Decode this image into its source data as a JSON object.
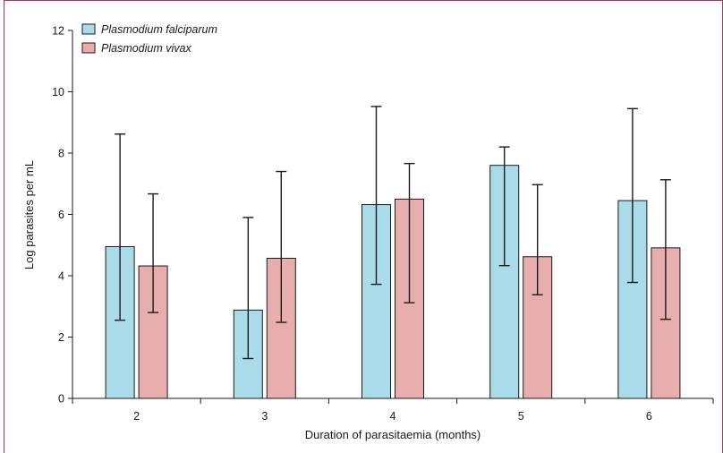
{
  "chart_data": {
    "type": "bar",
    "xlabel": "Duration of parasitaemia (months)",
    "ylabel": "Log parasites per mL",
    "ylim": [
      0,
      12
    ],
    "yticks": [
      0,
      2,
      4,
      6,
      8,
      10,
      12
    ],
    "categories": [
      "2",
      "3",
      "4",
      "5",
      "6"
    ],
    "grid": false,
    "legend_position": "top-left",
    "series": [
      {
        "name": "Plasmodium falciparum",
        "color": "#aadbe8",
        "values": [
          4.95,
          2.88,
          6.32,
          7.6,
          6.45
        ],
        "error_low": [
          2.55,
          1.3,
          3.72,
          4.33,
          3.78
        ],
        "error_high": [
          8.62,
          5.9,
          9.52,
          8.2,
          9.45
        ]
      },
      {
        "name": "Plasmodium vivax",
        "color": "#e8aeae",
        "values": [
          4.32,
          4.57,
          6.5,
          4.62,
          4.91
        ],
        "error_low": [
          2.8,
          2.48,
          3.12,
          3.38,
          2.58
        ],
        "error_high": [
          6.67,
          7.4,
          7.66,
          6.97,
          7.13
        ]
      }
    ]
  }
}
